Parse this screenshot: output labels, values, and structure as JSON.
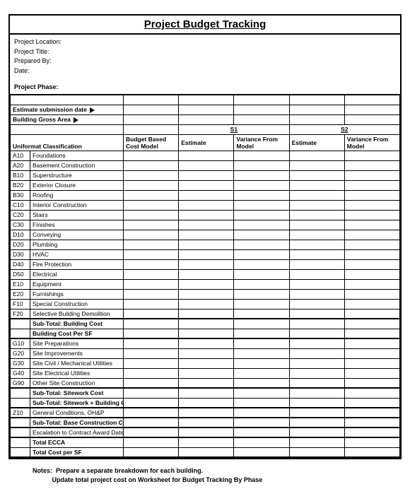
{
  "title": "Project Budget Tracking",
  "meta": {
    "location_label": "Project Location:",
    "title_label": "Project Title:",
    "prepared_label": "Prepared By:",
    "date_label": "Date:",
    "phase_label": "Project Phase:"
  },
  "rows": {
    "estimate_submission": "Estimate submission date",
    "gross_area": "Building Gross Area"
  },
  "columns": {
    "uniformat": "Uniformat Classification",
    "budget_based": "Budget Based Cost Model",
    "estimate": "Estimate",
    "variance": "Variance From Model",
    "s1": "S1",
    "s2": "S2"
  },
  "items": [
    {
      "code": "A10",
      "desc": "Foundations"
    },
    {
      "code": "A20",
      "desc": "Basement Construction"
    },
    {
      "code": "B10",
      "desc": "Superstructure"
    },
    {
      "code": "B20",
      "desc": "Exterior Closure"
    },
    {
      "code": "B30",
      "desc": "Roofing"
    },
    {
      "code": "C10",
      "desc": "Interior Construction"
    },
    {
      "code": "C20",
      "desc": "Stairs"
    },
    {
      "code": "C30",
      "desc": "Finishes"
    },
    {
      "code": "D10",
      "desc": "Conveying"
    },
    {
      "code": "D20",
      "desc": "Plumbing"
    },
    {
      "code": "D30",
      "desc": "HVAC"
    },
    {
      "code": "D40",
      "desc": "Fire Protection"
    },
    {
      "code": "D50",
      "desc": "Electrical"
    },
    {
      "code": "E10",
      "desc": "Equipment"
    },
    {
      "code": "E20",
      "desc": "Furnishings"
    },
    {
      "code": "F10",
      "desc": "Special Construction"
    },
    {
      "code": "F20",
      "desc": "Selective Building Demolition"
    }
  ],
  "subtotals1": [
    "Sub-Total: Building Cost",
    "Building Cost Per SF"
  ],
  "items2": [
    {
      "code": "G10",
      "desc": "Site Preparations"
    },
    {
      "code": "G20",
      "desc": "Site Improvements"
    },
    {
      "code": "G30",
      "desc": "Site Civil / Mechanical Utilities"
    },
    {
      "code": "G40",
      "desc": "Site Electrical Utilities"
    },
    {
      "code": "G90",
      "desc": "Other Site Construction"
    }
  ],
  "subtotals2": [
    "Sub-Total: Sitework Cost",
    "Sub-Total: Sitework + Building Cost"
  ],
  "items3": [
    {
      "code": "Z10",
      "desc": "General Conditions, OH&P"
    }
  ],
  "subtotals3": [
    "Sub-Total: Base Construction Cost"
  ],
  "items4": [
    {
      "code": "",
      "desc": "Escalation to Contract Award Date"
    }
  ],
  "subtotals4": [
    "Total ECCA",
    "Total Cost per SF"
  ],
  "notes": {
    "label": "Notes:",
    "line1": "Prepare a separate breakdown for each building.",
    "line2": "Update total project cost on Worksheet for Budget Tracking By Phase"
  },
  "style": {
    "border_color": "#000000",
    "background": "#ffffff",
    "title_fontsize": 15,
    "body_fontsize": 9,
    "cell_fontsize": 8.5
  }
}
